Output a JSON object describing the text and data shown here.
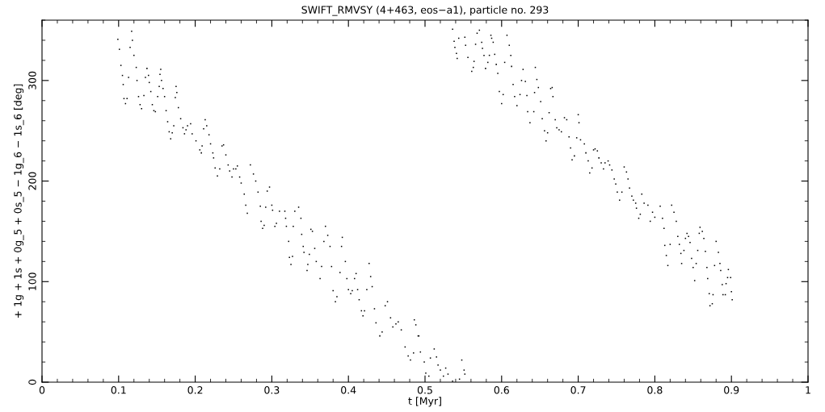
{
  "chart_data": {
    "type": "scatter",
    "title": "SWIFT_RMVSY (4+463, eos−a1), particle no. 293",
    "xlabel": "t [Myr]",
    "ylabel": "+ 1g + 1s + 0g_5 + 0s_5 − 1g_6 − 1s_6 [deg]",
    "xlim": [
      0,
      1
    ],
    "ylim": [
      0,
      360
    ],
    "xticks": [
      0,
      0.1,
      0.2,
      0.3,
      0.4,
      0.5,
      0.6,
      0.7,
      0.8,
      0.9,
      1
    ],
    "yticks": [
      0,
      100,
      200,
      300
    ],
    "grid": false,
    "marker": "square",
    "series": [
      {
        "color": "#000000",
        "x": [
          0.099,
          0.101,
          0.103,
          0.105,
          0.106,
          0.107,
          0.109,
          0.111,
          0.113,
          0.115,
          0.117,
          0.118,
          0.12,
          0.123,
          0.124,
          0.126,
          0.128,
          0.13,
          0.133,
          0.135,
          0.137,
          0.139,
          0.14,
          0.142,
          0.144,
          0.146,
          0.148,
          0.151,
          0.153,
          0.154,
          0.155,
          0.156,
          0.158,
          0.16,
          0.162,
          0.164,
          0.166,
          0.168,
          0.17,
          0.172,
          0.174,
          0.175,
          0.176,
          0.178,
          0.181,
          0.184,
          0.186,
          0.188,
          0.19,
          0.194,
          0.196,
          0.201,
          0.206,
          0.208,
          0.209,
          0.211,
          0.213,
          0.215,
          0.218,
          0.22,
          0.223,
          0.224,
          0.226,
          0.229,
          0.232,
          0.235,
          0.237,
          0.24,
          0.243,
          0.245,
          0.248,
          0.25,
          0.253,
          0.255,
          0.258,
          0.26,
          0.264,
          0.266,
          0.268,
          0.272,
          0.276,
          0.279,
          0.282,
          0.285,
          0.286,
          0.288,
          0.29,
          0.292,
          0.294,
          0.297,
          0.3,
          0.301,
          0.304,
          0.306,
          0.31,
          0.317,
          0.318,
          0.319,
          0.322,
          0.323,
          0.325,
          0.327,
          0.328,
          0.33,
          0.335,
          0.338,
          0.339,
          0.341,
          0.342,
          0.346,
          0.347,
          0.349,
          0.351,
          0.353,
          0.356,
          0.358,
          0.363,
          0.365,
          0.368,
          0.37,
          0.373,
          0.376,
          0.378,
          0.38,
          0.383,
          0.385,
          0.389,
          0.391,
          0.392,
          0.396,
          0.398,
          0.4,
          0.403,
          0.405,
          0.408,
          0.41,
          0.412,
          0.414,
          0.417,
          0.419,
          0.421,
          0.424,
          0.427,
          0.429,
          0.431,
          0.434,
          0.436,
          0.441,
          0.444,
          0.448,
          0.451,
          0.455,
          0.458,
          0.462,
          0.465,
          0.469,
          0.474,
          0.478,
          0.481,
          0.485,
          0.486,
          0.488,
          0.491,
          0.492,
          0.494,
          0.499,
          0.501,
          0.505,
          0.507,
          0.512,
          0.515,
          0.517,
          0.52,
          0.524,
          0.527,
          0.53,
          0.536,
          0.545,
          0.548,
          0.551,
          0.552
        ],
        "values": [
          341,
          331,
          315,
          305,
          296,
          282,
          277,
          282,
          303,
          333,
          349,
          340,
          325,
          313,
          300,
          284,
          276,
          272,
          285,
          303,
          312,
          305,
          298,
          289,
          276,
          270,
          269,
          284,
          294,
          306,
          311,
          300,
          292,
          284,
          270,
          259,
          249,
          242,
          248,
          255,
          283,
          294,
          288,
          273,
          262,
          253,
          247,
          251,
          255,
          257,
          247,
          240,
          231,
          228,
          235,
          252,
          261,
          255,
          246,
          237,
          228,
          223,
          213,
          205,
          212,
          235,
          236,
          226,
          216,
          210,
          204,
          212,
          212,
          215,
          204,
          198,
          187,
          176,
          168,
          216,
          207,
          200,
          189,
          175,
          160,
          153,
          156,
          174,
          190,
          194,
          176,
          171,
          155,
          158,
          170,
          170,
          163,
          155,
          140,
          124,
          117,
          125,
          155,
          170,
          174,
          163,
          147,
          135,
          129,
          111,
          117,
          127,
          152,
          150,
          133,
          120,
          103,
          115,
          140,
          155,
          146,
          135,
          115,
          91,
          80,
          85,
          109,
          135,
          144,
          120,
          103,
          92,
          88,
          91,
          103,
          108,
          92,
          82,
          71,
          66,
          71,
          92,
          118,
          105,
          95,
          73,
          59,
          46,
          50,
          76,
          80,
          64,
          55,
          58,
          60,
          52,
          35,
          26,
          22,
          29,
          62,
          57,
          46,
          46,
          30,
          20,
          9,
          6,
          24,
          33,
          25,
          17,
          12,
          6,
          14,
          8,
          1,
          3,
          22,
          12,
          8
        ]
      },
      {
        "color": "#000000",
        "x": [
          0.536,
          0.538,
          0.539,
          0.541,
          0.542,
          0.544,
          0.552,
          0.553,
          0.556,
          0.561,
          0.563,
          0.564,
          0.566,
          0.568,
          0.571,
          0.574,
          0.575,
          0.577,
          0.579,
          0.582,
          0.584,
          0.586,
          0.587,
          0.589,
          0.591,
          0.593,
          0.595,
          0.597,
          0.6,
          0.602,
          0.604,
          0.607,
          0.61,
          0.612,
          0.613,
          0.615,
          0.617,
          0.62,
          0.624,
          0.626,
          0.628,
          0.631,
          0.633,
          0.634,
          0.637,
          0.642,
          0.643,
          0.644,
          0.646,
          0.648,
          0.651,
          0.653,
          0.656,
          0.658,
          0.66,
          0.662,
          0.664,
          0.666,
          0.667,
          0.67,
          0.672,
          0.675,
          0.678,
          0.682,
          0.685,
          0.688,
          0.69,
          0.692,
          0.695,
          0.698,
          0.7,
          0.701,
          0.703,
          0.708,
          0.71,
          0.713,
          0.715,
          0.718,
          0.72,
          0.722,
          0.725,
          0.727,
          0.73,
          0.733,
          0.735,
          0.739,
          0.741,
          0.744,
          0.747,
          0.749,
          0.751,
          0.754,
          0.757,
          0.76,
          0.763,
          0.765,
          0.767,
          0.77,
          0.772,
          0.775,
          0.776,
          0.779,
          0.781,
          0.783,
          0.786,
          0.791,
          0.794,
          0.797,
          0.8,
          0.807,
          0.81,
          0.812,
          0.813,
          0.815,
          0.817,
          0.82,
          0.822,
          0.825,
          0.828,
          0.83,
          0.832,
          0.834,
          0.835,
          0.838,
          0.84,
          0.842,
          0.844,
          0.846,
          0.848,
          0.85,
          0.852,
          0.854,
          0.856,
          0.858,
          0.859,
          0.862,
          0.864,
          0.866,
          0.868,
          0.869,
          0.871,
          0.872,
          0.875,
          0.876,
          0.878,
          0.88,
          0.883,
          0.885,
          0.886,
          0.888,
          0.889,
          0.892,
          0.893,
          0.895,
          0.896,
          0.899,
          0.9,
          0.901
        ],
        "values": [
          351,
          339,
          333,
          327,
          322,
          342,
          343,
          335,
          323,
          309,
          313,
          319,
          336,
          347,
          350,
          338,
          332,
          325,
          312,
          318,
          325,
          345,
          342,
          338,
          326,
          316,
          307,
          289,
          277,
          286,
          318,
          345,
          335,
          325,
          314,
          296,
          284,
          275,
          286,
          300,
          311,
          299,
          285,
          269,
          258,
          269,
          288,
          313,
          301,
          293,
          279,
          262,
          250,
          240,
          248,
          268,
          292,
          293,
          284,
          261,
          253,
          251,
          249,
          263,
          261,
          244,
          233,
          221,
          225,
          243,
          266,
          258,
          241,
          237,
          228,
          220,
          208,
          213,
          231,
          232,
          230,
          223,
          218,
          212,
          218,
          220,
          216,
          211,
          202,
          197,
          189,
          181,
          189,
          214,
          209,
          202,
          193,
          185,
          181,
          178,
          173,
          163,
          167,
          187,
          178,
          176,
          160,
          169,
          164,
          175,
          163,
          153,
          136,
          126,
          116,
          137,
          176,
          169,
          160,
          145,
          137,
          128,
          118,
          131,
          143,
          148,
          145,
          139,
          123,
          114,
          101,
          118,
          131,
          148,
          154,
          150,
          143,
          130,
          114,
          103,
          88,
          76,
          78,
          87,
          116,
          140,
          129,
          118,
          111,
          97,
          87,
          87,
          98,
          104,
          112,
          104,
          90,
          82
        ]
      }
    ]
  }
}
